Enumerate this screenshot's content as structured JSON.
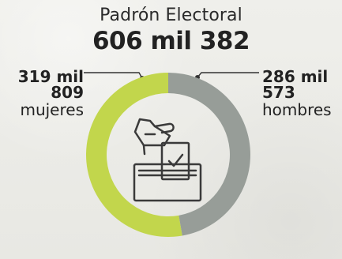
{
  "chart_data": {
    "type": "pie",
    "title": "Padrón Electoral",
    "total_label": "606 mil 382",
    "series": [
      {
        "name": "mujeres",
        "value": 319809,
        "value_label_line1": "319 mil",
        "value_label_line2": "809",
        "label": "mujeres",
        "color": "#c2d64c"
      },
      {
        "name": "hombres",
        "value": 286573,
        "value_label_line1": "286 mil",
        "value_label_line2": "573",
        "label": "hombres",
        "color": "#979d98"
      }
    ]
  },
  "icon": "ballot-box-icon"
}
